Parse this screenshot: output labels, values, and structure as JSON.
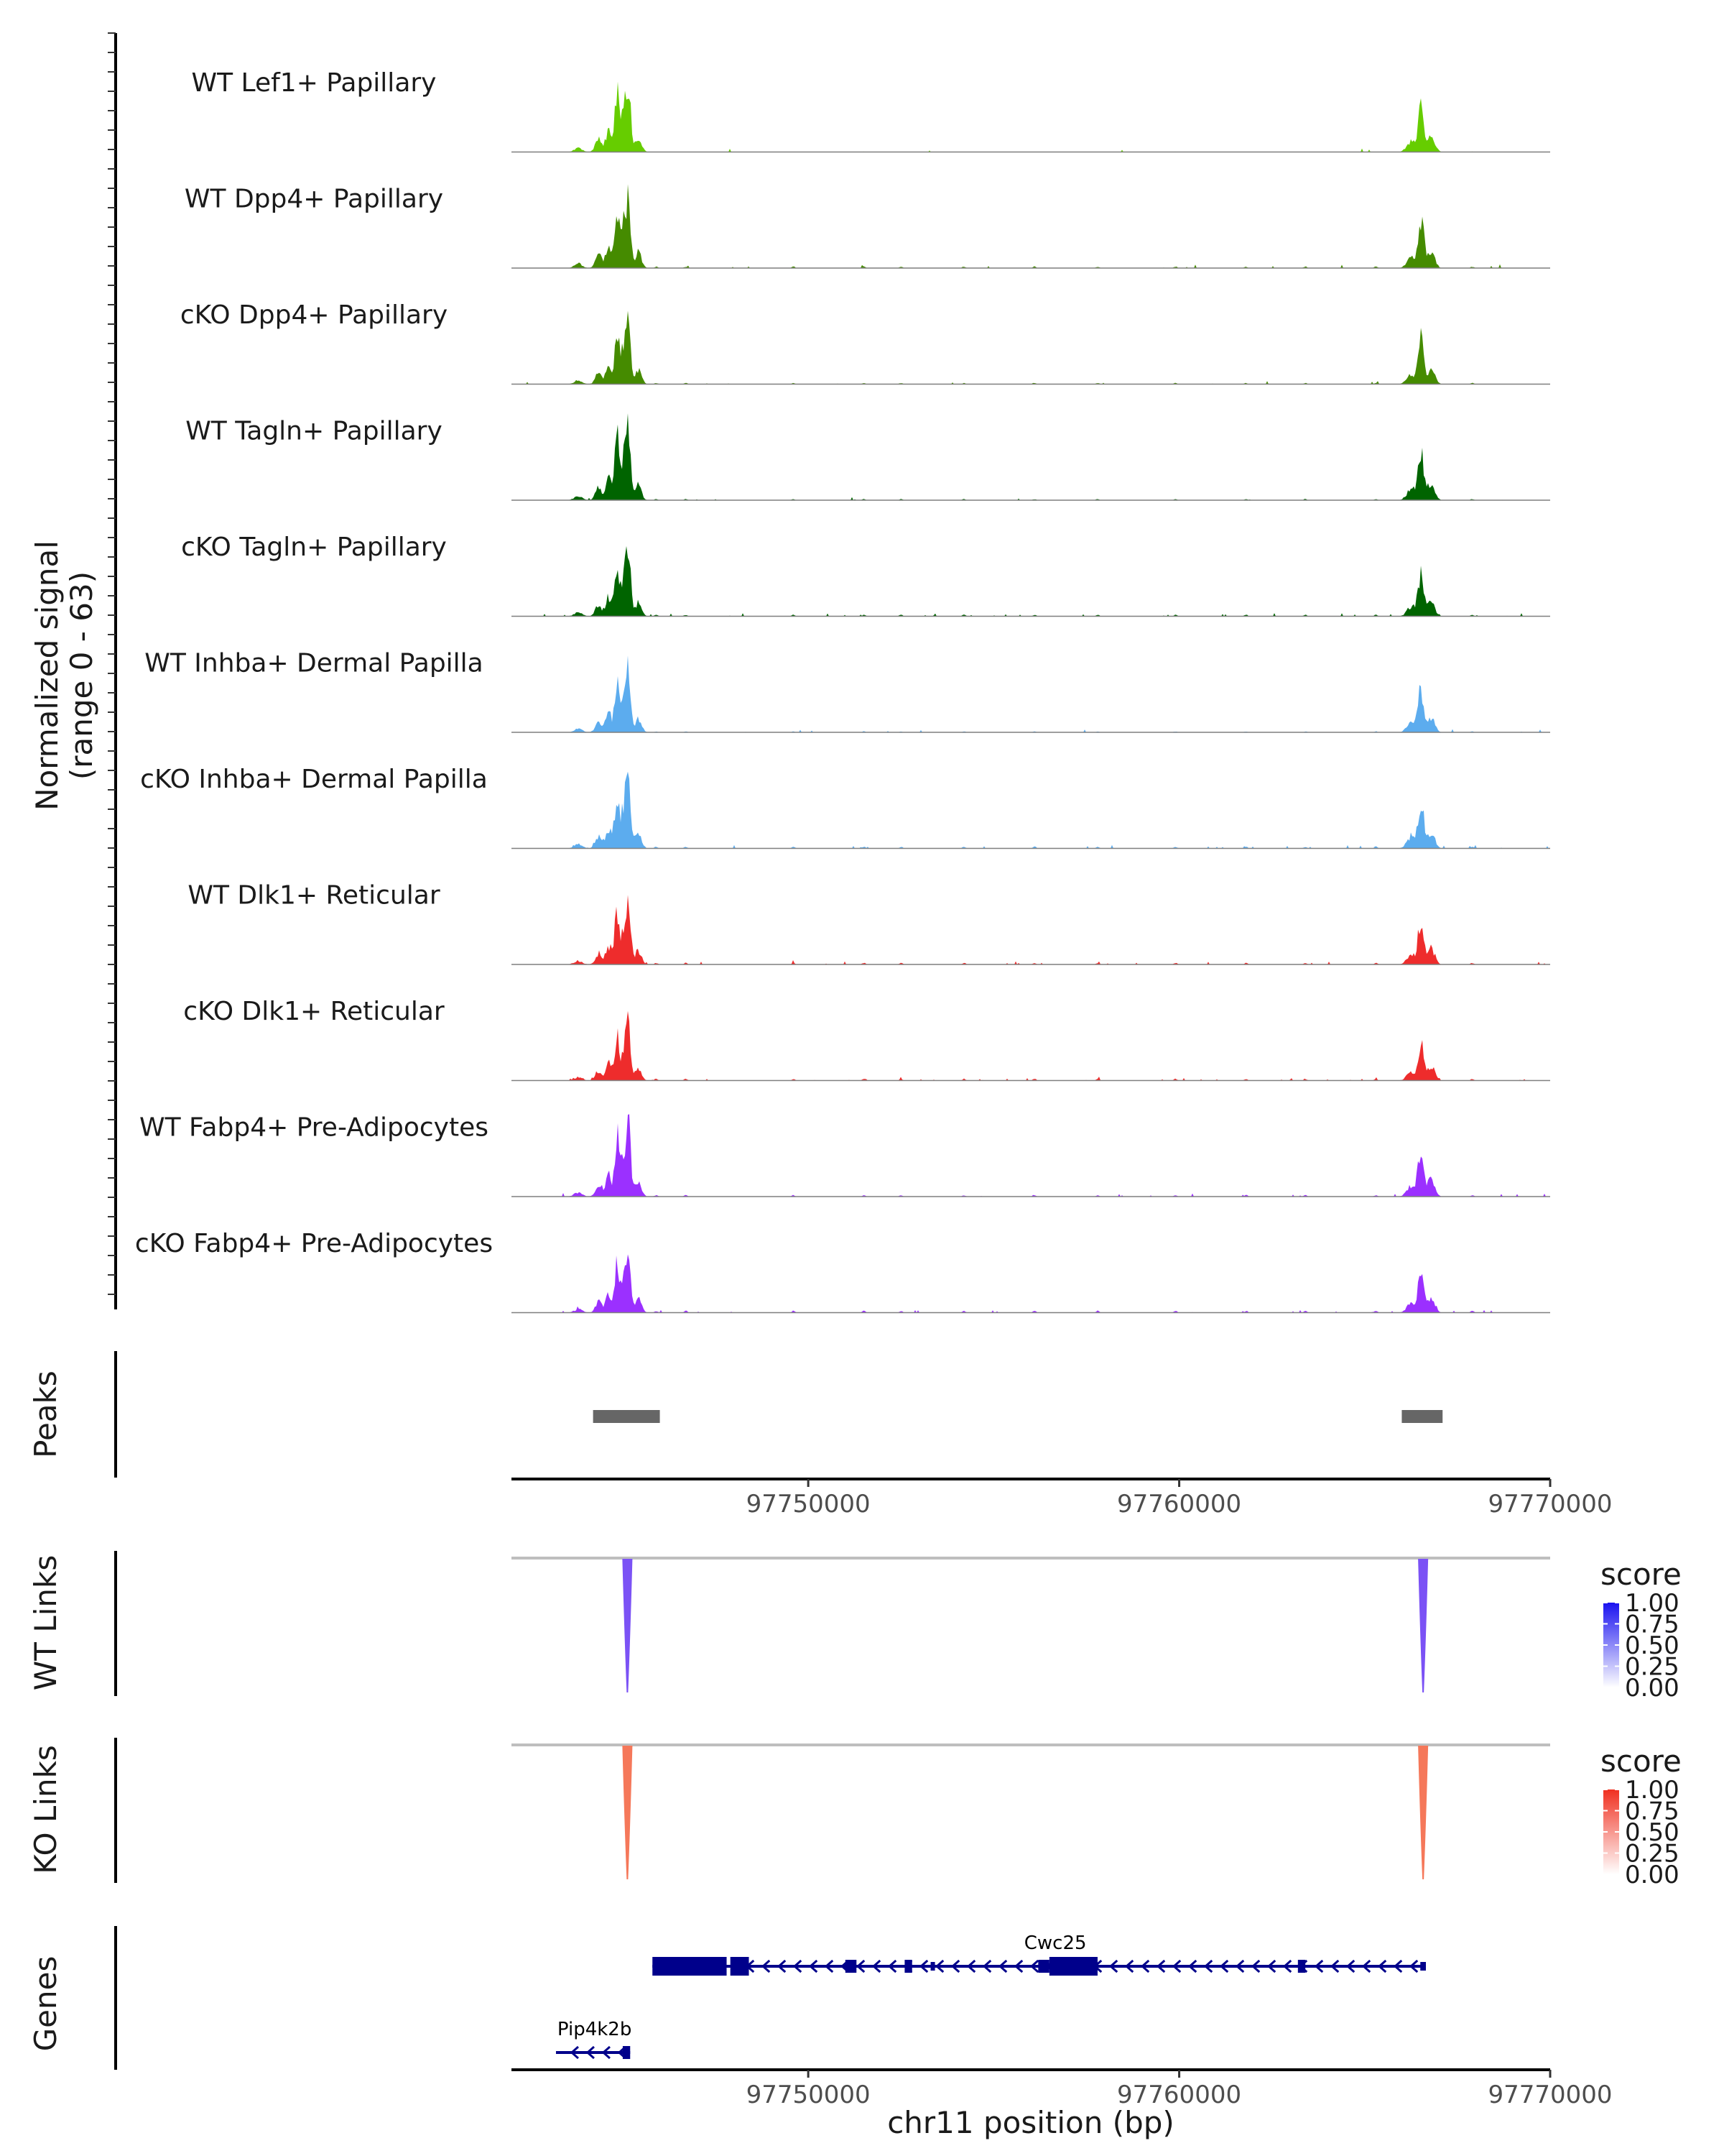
{
  "chart_data": {
    "type": "coverage-track",
    "chromosome": "chr11",
    "x_range_bp": [
      97742000,
      97770000
    ],
    "xlabel": "chr11 position (bp)",
    "x_ticks": [
      "97750000",
      "97760000",
      "97770000"
    ],
    "x_tick_values": [
      97750000,
      97760000,
      97770000
    ],
    "coverage": {
      "ylabel_line1": "Normalized signal",
      "ylabel_line2": "(range 0 - 63)",
      "y_range": [
        0,
        63
      ],
      "tracks": [
        {
          "name": "WT Lef1+ Papillary",
          "color": "#66CD00",
          "peak_scale": 0.95,
          "noise": 0.1,
          "seed": 11
        },
        {
          "name": "WT Dpp4+ Papillary",
          "color": "#458B00",
          "peak_scale": 1.0,
          "noise": 0.4,
          "seed": 23
        },
        {
          "name": "cKO Dpp4+ Papillary",
          "color": "#458B00",
          "peak_scale": 0.85,
          "noise": 0.35,
          "seed": 37
        },
        {
          "name": "WT Tagln+ Papillary",
          "color": "#006400",
          "peak_scale": 1.0,
          "noise": 0.3,
          "seed": 41
        },
        {
          "name": "cKO Tagln+ Papillary",
          "color": "#006400",
          "peak_scale": 0.85,
          "noise": 0.5,
          "seed": 53
        },
        {
          "name": "WT Inhba+ Dermal Papilla",
          "color": "#5CACEE",
          "peak_scale": 0.85,
          "noise": 0.3,
          "seed": 61
        },
        {
          "name": "cKO Inhba+ Dermal Papilla",
          "color": "#5CACEE",
          "peak_scale": 0.95,
          "noise": 0.5,
          "seed": 71
        },
        {
          "name": "WT Dlk1+ Reticular",
          "color": "#EE2C2C",
          "peak_scale": 0.85,
          "noise": 0.5,
          "seed": 83
        },
        {
          "name": "cKO Dlk1+ Reticular",
          "color": "#EE2C2C",
          "peak_scale": 0.75,
          "noise": 0.6,
          "seed": 97
        },
        {
          "name": "WT Fabp4+ Pre-Adipocytes",
          "color": "#9B30FF",
          "peak_scale": 0.95,
          "noise": 0.4,
          "seed": 101
        },
        {
          "name": "cKO Fabp4+ Pre-Adipocytes",
          "color": "#9B30FF",
          "peak_scale": 0.8,
          "noise": 0.6,
          "seed": 113
        }
      ]
    },
    "peaks": {
      "label": "Peaks",
      "color": "#666666",
      "regions": [
        [
          97744200,
          97746000
        ],
        [
          97766000,
          97767100
        ]
      ]
    },
    "links": [
      {
        "label": "WT Links",
        "color": "#7B52F5",
        "legend_title": "score",
        "legend_high": "#1A12F0",
        "legend_ticks": [
          "1.00",
          "0.75",
          "0.50",
          "0.25",
          "0.00"
        ],
        "arcs": [
          [
            97745100,
            97745150
          ],
          [
            97766550,
            97766600
          ]
        ]
      },
      {
        "label": "KO Links",
        "color": "#F5785A",
        "legend_title": "score",
        "legend_high": "#F03020",
        "legend_ticks": [
          "1.00",
          "0.75",
          "0.50",
          "0.25",
          "0.00"
        ],
        "arcs": [
          [
            97745100,
            97745150
          ],
          [
            97766550,
            97766600
          ]
        ]
      }
    ],
    "genes": {
      "label": "Genes",
      "color": "#00008B",
      "items": [
        {
          "name": "Cwc25",
          "start": 97745800,
          "end": 97766650,
          "strand": "-",
          "row": 0,
          "exons": [
            [
              97745800,
              97747800,
              "w"
            ],
            [
              97747900,
              97748400,
              "w"
            ],
            [
              97751000,
              97751300,
              "m"
            ],
            [
              97752600,
              97752800,
              "m"
            ],
            [
              97753300,
              97753400,
              "n"
            ],
            [
              97756200,
              97756500,
              "m"
            ],
            [
              97756500,
              97757800,
              "w"
            ],
            [
              97763200,
              97763400,
              "m"
            ],
            [
              97766500,
              97766650,
              "n"
            ]
          ]
        },
        {
          "name": "Pip4k2b",
          "start": 97743200,
          "end": 97745200,
          "strand": "-",
          "row": 1,
          "exons": [
            [
              97745000,
              97745200,
              "m"
            ]
          ]
        }
      ]
    }
  }
}
